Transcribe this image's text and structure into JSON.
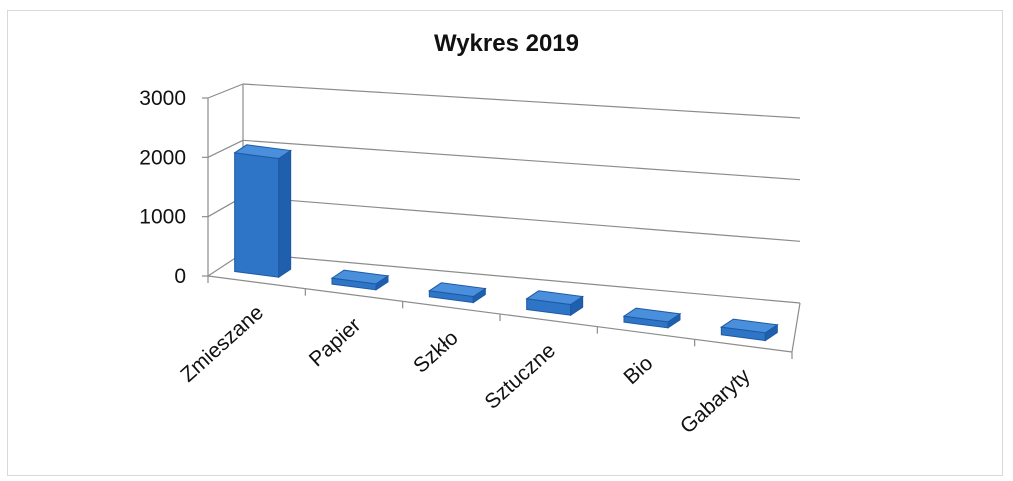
{
  "chart_data": {
    "type": "bar",
    "title": "Wykres 2019",
    "categories": [
      "Zmieszane",
      "Papier",
      "Szkło",
      "Sztuczne",
      "Bio",
      "Gabaryty"
    ],
    "values": [
      2000,
      30,
      60,
      180,
      60,
      130
    ],
    "ylim": [
      0,
      3000
    ],
    "yticks": [
      "0",
      "1000",
      "2000",
      "3000"
    ],
    "xlabel": "",
    "ylabel": "",
    "grid": true,
    "legend": "none",
    "bar_color": "#2e75c8"
  }
}
